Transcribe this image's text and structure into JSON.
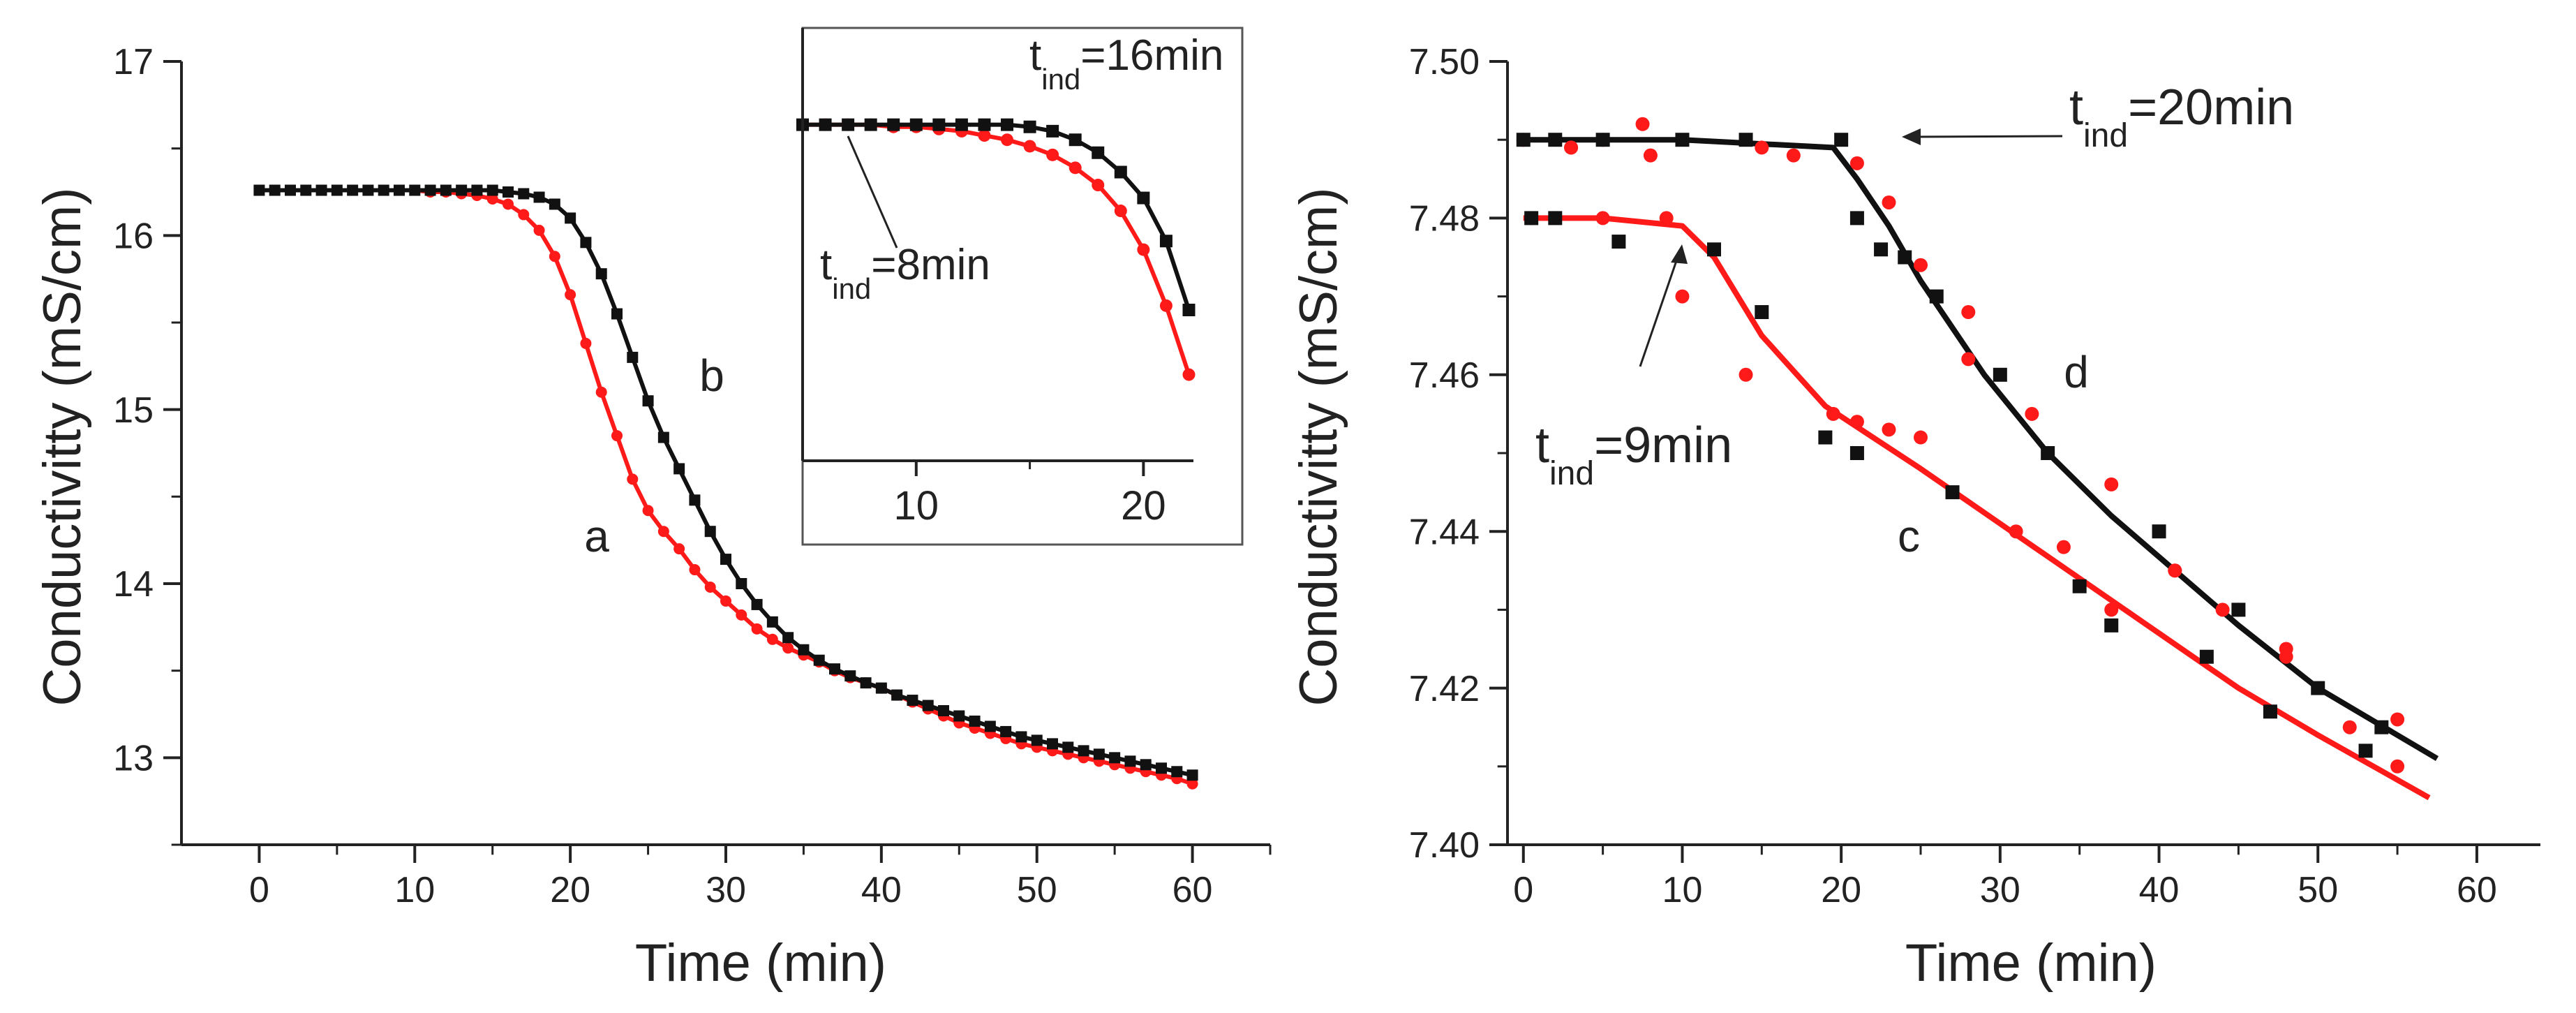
{
  "chart_data": [
    {
      "type": "scatter",
      "panel": "left",
      "xlabel": "Time (min)",
      "ylabel": "Conductivitty (mS/cm)",
      "xlim": [
        -5,
        65
      ],
      "ylim": [
        12.5,
        17
      ],
      "xticks": [
        0,
        10,
        20,
        30,
        40,
        50,
        60
      ],
      "yticks": [
        13,
        14,
        15,
        16,
        17
      ],
      "xtick_labels": [
        "0",
        "10",
        "20",
        "30",
        "40",
        "50",
        "60"
      ],
      "ytick_labels": [
        "13",
        "14",
        "15",
        "16",
        "17"
      ],
      "series": [
        {
          "name": "a",
          "label": "a",
          "color": "#ff1a1a",
          "marker": "circle",
          "x": [
            0,
            1,
            2,
            3,
            4,
            5,
            6,
            7,
            8,
            9,
            10,
            11,
            12,
            13,
            14,
            15,
            16,
            17,
            18,
            19,
            20,
            21,
            22,
            23,
            24,
            25,
            26,
            27,
            28,
            29,
            30,
            31,
            32,
            33,
            34,
            35,
            36,
            37,
            38,
            39,
            40,
            41,
            42,
            43,
            44,
            45,
            46,
            47,
            48,
            49,
            50,
            51,
            52,
            53,
            54,
            55,
            56,
            57,
            58,
            59,
            60
          ],
          "y": [
            16.26,
            16.26,
            16.26,
            16.26,
            16.26,
            16.26,
            16.26,
            16.26,
            16.26,
            16.26,
            16.26,
            16.25,
            16.25,
            16.24,
            16.23,
            16.21,
            16.18,
            16.12,
            16.03,
            15.88,
            15.66,
            15.38,
            15.1,
            14.85,
            14.6,
            14.42,
            14.3,
            14.2,
            14.08,
            13.98,
            13.9,
            13.82,
            13.74,
            13.68,
            13.63,
            13.59,
            13.55,
            13.5,
            13.46,
            13.43,
            13.4,
            13.36,
            13.32,
            13.28,
            13.24,
            13.2,
            13.17,
            13.14,
            13.11,
            13.08,
            13.06,
            13.04,
            13.02,
            13.0,
            12.98,
            12.96,
            12.94,
            12.92,
            12.9,
            12.88,
            12.85
          ]
        },
        {
          "name": "b",
          "label": "b",
          "color": "#111111",
          "marker": "square",
          "x": [
            0,
            1,
            2,
            3,
            4,
            5,
            6,
            7,
            8,
            9,
            10,
            11,
            12,
            13,
            14,
            15,
            16,
            17,
            18,
            19,
            20,
            21,
            22,
            23,
            24,
            25,
            26,
            27,
            28,
            29,
            30,
            31,
            32,
            33,
            34,
            35,
            36,
            37,
            38,
            39,
            40,
            41,
            42,
            43,
            44,
            45,
            46,
            47,
            48,
            49,
            50,
            51,
            52,
            53,
            54,
            55,
            56,
            57,
            58,
            59,
            60
          ],
          "y": [
            16.26,
            16.26,
            16.26,
            16.26,
            16.26,
            16.26,
            16.26,
            16.26,
            16.26,
            16.26,
            16.26,
            16.26,
            16.26,
            16.26,
            16.26,
            16.26,
            16.25,
            16.24,
            16.22,
            16.18,
            16.1,
            15.96,
            15.78,
            15.55,
            15.3,
            15.05,
            14.84,
            14.66,
            14.48,
            14.3,
            14.14,
            14.0,
            13.88,
            13.78,
            13.69,
            13.62,
            13.56,
            13.51,
            13.47,
            13.43,
            13.4,
            13.36,
            13.33,
            13.3,
            13.27,
            13.24,
            13.21,
            13.18,
            13.15,
            13.12,
            13.1,
            13.08,
            13.06,
            13.04,
            13.02,
            13.0,
            12.98,
            12.96,
            12.94,
            12.92,
            12.9
          ]
        }
      ],
      "annotations": [
        "a",
        "b"
      ]
    },
    {
      "type": "scatter",
      "panel": "inset",
      "xlim": [
        5,
        22.2
      ],
      "ylim": [
        14.7,
        16.45
      ],
      "xticks": [
        10,
        20
      ],
      "xtick_labels": [
        "10",
        "20"
      ],
      "series": [
        {
          "name": "a",
          "color": "#ff1a1a",
          "marker": "circle",
          "x": [
            5,
            6,
            7,
            8,
            9,
            10,
            11,
            12,
            13,
            14,
            15,
            16,
            17,
            18,
            19,
            20,
            21,
            22
          ],
          "y": [
            16.26,
            16.26,
            16.26,
            16.26,
            16.25,
            16.25,
            16.24,
            16.23,
            16.21,
            16.19,
            16.16,
            16.12,
            16.06,
            15.98,
            15.86,
            15.68,
            15.42,
            15.1
          ]
        },
        {
          "name": "b",
          "color": "#111111",
          "marker": "square",
          "x": [
            5,
            6,
            7,
            8,
            9,
            10,
            11,
            12,
            13,
            14,
            15,
            16,
            17,
            18,
            19,
            20,
            21,
            22
          ],
          "y": [
            16.26,
            16.26,
            16.26,
            16.26,
            16.26,
            16.26,
            16.26,
            16.26,
            16.26,
            16.26,
            16.25,
            16.23,
            16.19,
            16.13,
            16.04,
            15.92,
            15.72,
            15.4
          ]
        }
      ],
      "annotations": [
        {
          "main": "t",
          "sub": "ind",
          "value": "=16min"
        },
        {
          "main": "t",
          "sub": "ind",
          "value": "=8min"
        }
      ]
    },
    {
      "type": "scatter",
      "panel": "right",
      "xlabel": "Time (min)",
      "ylabel": "Conductivitty (mS/cm)",
      "xlim": [
        -1,
        64
      ],
      "ylim": [
        7.4,
        7.5
      ],
      "xticks": [
        0,
        10,
        20,
        30,
        40,
        50,
        60
      ],
      "yticks": [
        7.4,
        7.42,
        7.44,
        7.46,
        7.48,
        7.5
      ],
      "xtick_labels": [
        "0",
        "10",
        "20",
        "30",
        "40",
        "50",
        "60"
      ],
      "ytick_labels": [
        "7.40",
        "7.42",
        "7.44",
        "7.46",
        "7.48",
        "7.50"
      ],
      "series": [
        {
          "name": "c",
          "label": "c",
          "color": "#ff1a1a",
          "line": {
            "x": [
              0,
              5,
              10,
              12,
              15,
              19,
              25,
              30,
              35,
              40,
              45,
              50,
              57
            ],
            "y": [
              7.48,
              7.48,
              7.479,
              7.475,
              7.465,
              7.456,
              7.448,
              7.441,
              7.434,
              7.427,
              7.42,
              7.414,
              7.406
            ]
          },
          "points_red": {
            "x": [
              0.5,
              3,
              5,
              7.5,
              9,
              10,
              14,
              19.5,
              21,
              23,
              25,
              28,
              31,
              34,
              37,
              41,
              44,
              48,
              52,
              55
            ],
            "y": [
              7.48,
              7.489,
              7.48,
              7.492,
              7.48,
              7.47,
              7.46,
              7.455,
              7.454,
              7.453,
              7.452,
              7.462,
              7.44,
              7.438,
              7.43,
              7.435,
              7.43,
              7.425,
              7.415,
              7.41
            ]
          },
          "points_black": {
            "x": [
              0.5,
              2,
              6,
              12,
              15,
              19,
              21,
              27,
              35,
              37,
              43,
              47,
              53
            ],
            "y": [
              7.48,
              7.48,
              7.477,
              7.476,
              7.468,
              7.452,
              7.45,
              7.445,
              7.433,
              7.428,
              7.424,
              7.417,
              7.412
            ]
          }
        },
        {
          "name": "d",
          "label": "d",
          "color": "#111111",
          "line": {
            "x": [
              0,
              10,
              19.5,
              21,
              23,
              25,
              27,
              29,
              31,
              33,
              37,
              41,
              45,
              50,
              57.5
            ],
            "y": [
              7.49,
              7.49,
              7.489,
              7.485,
              7.479,
              7.472,
              7.466,
              7.46,
              7.455,
              7.45,
              7.442,
              7.435,
              7.428,
              7.42,
              7.411
            ]
          },
          "points_red": {
            "x": [
              0,
              3,
              5,
              8,
              15,
              17,
              21,
              23,
              25,
              28,
              32,
              37,
              41,
              45,
              48,
              55
            ],
            "y": [
              7.49,
              7.489,
              7.49,
              7.488,
              7.489,
              7.488,
              7.487,
              7.482,
              7.474,
              7.468,
              7.455,
              7.446,
              7.435,
              7.43,
              7.424,
              7.416
            ]
          },
          "points_black": {
            "x": [
              0,
              2,
              5,
              10,
              14,
              20,
              21,
              22.5,
              24,
              26,
              30,
              33,
              40,
              45,
              50,
              54
            ],
            "y": [
              7.49,
              7.49,
              7.49,
              7.49,
              7.49,
              7.49,
              7.48,
              7.476,
              7.475,
              7.47,
              7.46,
              7.45,
              7.44,
              7.43,
              7.42,
              7.415
            ]
          }
        }
      ],
      "annotations": [
        {
          "main": "t",
          "sub": "ind",
          "value": "=20min"
        },
        {
          "main": "t",
          "sub": "ind",
          "value": "=9min"
        },
        "c",
        "d"
      ]
    }
  ],
  "colors": {
    "red": "#ff1a1a",
    "black": "#111111",
    "axis": "#222222"
  }
}
